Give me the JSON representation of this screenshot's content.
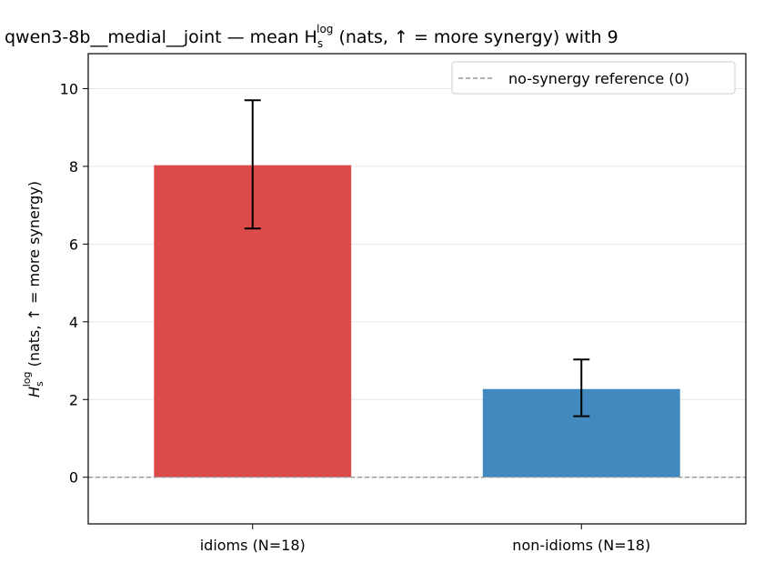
{
  "chart_data": {
    "type": "bar",
    "title": "qwen3-8b__medial__joint — mean H",
    "title_sub": "s",
    "title_sup": "log",
    "title_rest": " (nats, ↑ = more synergy) with 9",
    "ylabel_main": "H",
    "ylabel_sub": "s",
    "ylabel_sup": "log",
    "ylabel_rest": " (nats, ↑ = more synergy)",
    "categories": [
      "idioms (N=18)",
      "non-idioms (N=18)"
    ],
    "values": [
      8.03,
      2.27
    ],
    "error_low": [
      6.4,
      1.57
    ],
    "error_high": [
      9.7,
      3.03
    ],
    "colors": [
      "#dc4a4a",
      "#4189be"
    ],
    "ylim": [
      -1.2,
      10.9
    ],
    "yticks": [
      0,
      2,
      4,
      6,
      8,
      10
    ],
    "grid": true,
    "reference_line": {
      "value": 0,
      "label": "no-synergy reference (0)",
      "color": "#999999",
      "style": "dashed"
    },
    "legend_position": "top-right"
  }
}
